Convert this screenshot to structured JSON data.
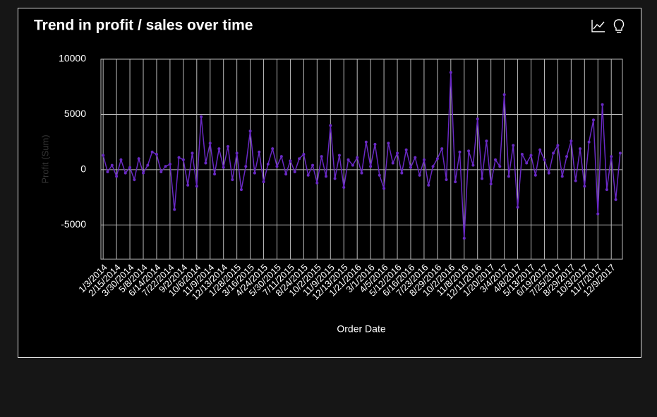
{
  "chart_data": {
    "type": "line",
    "title": "Trend in profit / sales over time",
    "x_label": "Order Date",
    "y_label": "Profit (Sum)",
    "categories": [
      "1/3/2014",
      null,
      null,
      "2/15/2014",
      null,
      null,
      "3/30/2014",
      null,
      null,
      "5/8/2014",
      null,
      null,
      "6/14/2014",
      null,
      null,
      "7/22/2014",
      null,
      null,
      "9/2/2014",
      null,
      null,
      "10/6/2014",
      null,
      null,
      "11/9/2014",
      null,
      null,
      "12/13/2014",
      null,
      null,
      "1/28/2015",
      null,
      null,
      "3/16/2015",
      null,
      null,
      "4/24/2015",
      null,
      null,
      "5/30/2015",
      null,
      null,
      "7/11/2015",
      null,
      null,
      "8/24/2015",
      null,
      null,
      "10/2/2015",
      null,
      null,
      "11/9/2015",
      null,
      null,
      "12/13/2015",
      null,
      null,
      "1/21/2016",
      null,
      null,
      "3/1/2016",
      null,
      null,
      "4/5/2016",
      null,
      null,
      "5/12/2016",
      null,
      null,
      "6/16/2016",
      null,
      null,
      "7/23/2016",
      null,
      null,
      "8/29/2016",
      null,
      null,
      "10/2/2016",
      null,
      null,
      "11/8/2016",
      null,
      null,
      "12/11/2016",
      null,
      null,
      "1/20/2017",
      null,
      null,
      "3/4/2017",
      null,
      null,
      "4/8/2017",
      null,
      null,
      "5/13/2017",
      null,
      null,
      "6/19/2017",
      null,
      null,
      "7/25/2017",
      null,
      null,
      "8/29/2017",
      null,
      null,
      "10/3/2017",
      null,
      null,
      "11/7/2017",
      null,
      null,
      "12/9/2017",
      null,
      null
    ],
    "series": [
      {
        "name": "Profit (Sum)",
        "color": "#6929c4",
        "values": [
          1300,
          -200,
          400,
          -600,
          900,
          -300,
          200,
          -900,
          1000,
          -300,
          400,
          1600,
          1400,
          -200,
          300,
          500,
          -3600,
          1100,
          900,
          -1400,
          1500,
          -1500,
          4800,
          600,
          2400,
          -400,
          1900,
          200,
          2100,
          -900,
          1500,
          -1800,
          300,
          3500,
          -300,
          1600,
          -1100,
          500,
          1900,
          300,
          1200,
          -400,
          800,
          -200,
          1000,
          1400,
          -500,
          400,
          -1200,
          1200,
          -600,
          4000,
          -800,
          1300,
          -1600,
          900,
          400,
          1100,
          -300,
          2500,
          300,
          2300,
          -500,
          -1700,
          2400,
          600,
          1500,
          -300,
          1800,
          200,
          1100,
          -500,
          900,
          -1400,
          300,
          1000,
          1900,
          -900,
          8800,
          -1100,
          1600,
          -6200,
          1700,
          400,
          4600,
          -800,
          2600,
          -1300,
          900,
          300,
          6800,
          -600,
          2200,
          -3400,
          1400,
          600,
          1300,
          -500,
          1800,
          900,
          -300,
          1500,
          2200,
          -600,
          1200,
          2600,
          -1000,
          1900,
          -1500,
          2500,
          4500,
          -4000,
          5900,
          -1800,
          1200,
          -2700,
          1500
        ]
      }
    ],
    "ylim": [
      -8100,
      10000
    ],
    "yticks": [
      -5000,
      0,
      5000,
      10000
    ],
    "grid": true
  }
}
